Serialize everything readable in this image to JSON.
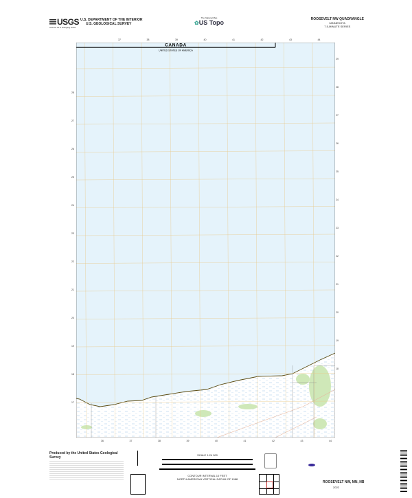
{
  "header": {
    "agency_logo": "USGS",
    "agency_tagline": "science for a changing world",
    "department": "U.S. DEPARTMENT OF THE INTERIOR",
    "survey": "U.S. GEOLOGICAL SURVEY",
    "product_tagline": "The National Map",
    "product": "US Topo",
    "quad_name": "ROOSEVELT NW QUADRANGLE",
    "state": "MINNESOTA",
    "series": "7.5-MINUTE SERIES"
  },
  "map": {
    "border_label_country_north": "CANADA",
    "border_label_country_south": "UNITED STATES OF AMERICA",
    "top_ticks": [
      "37",
      "38",
      "39",
      "40",
      "41",
      "42",
      "43",
      "44"
    ],
    "bottom_ticks": [
      "36",
      "37",
      "38",
      "39",
      "40",
      "41",
      "42",
      "43",
      "44"
    ],
    "left_ticks": [
      "28",
      "27",
      "26",
      "25",
      "24",
      "23",
      "22",
      "21",
      "20",
      "19",
      "18",
      "17"
    ],
    "right_ticks": [
      "29",
      "28",
      "27",
      "26",
      "25",
      "24",
      "23",
      "22",
      "21",
      "20",
      "19",
      "18"
    ],
    "colors": {
      "water": "#e5f3fb",
      "grid": "#e8c98a",
      "shoreline": "#5a4a10",
      "vegetation": "#cfe8b8",
      "road": "#e6b7a0",
      "border": "#000000"
    }
  },
  "footer": {
    "producer": "Produced by the United States Geological Survey",
    "scale": "SCALE 1:24 000",
    "contour_note": "CONTOUR INTERVAL 10 FEET",
    "datum_note": "NORTH AMERICAN VERTICAL DATUM OF 1988",
    "map_title": "ROOSEVELT NW, MN, NB",
    "year": "2022"
  }
}
